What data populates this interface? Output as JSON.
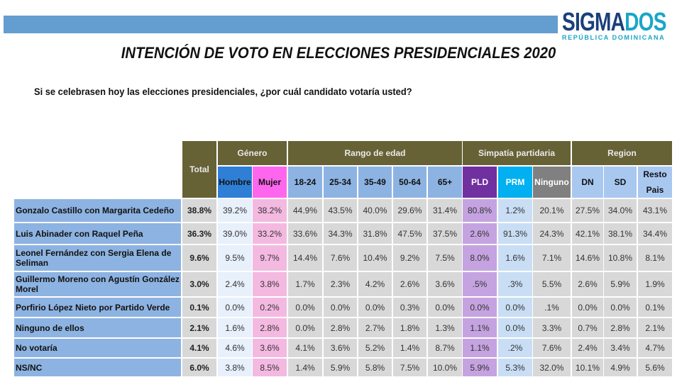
{
  "header": {
    "logo_main_part1": "SIGMA",
    "logo_main_part2": "DOS",
    "logo_sub": "REPÚBLICA DOMINICANA",
    "title": "INTENCIÓN DE VOTO EN ELECCIONES PRESIDENCIALES 2020",
    "question": "Si se celebrasen hoy las elecciones presidenciales, ¿por cuál candidato votaría usted?"
  },
  "colors": {
    "topbar": "#649dd0",
    "header_olive": "#676236",
    "hombre": "#2f7fd6",
    "mujer": "#ff66ee",
    "age": "#8db3e2",
    "pld": "#7030a0",
    "prm": "#00b0f0",
    "ninguno": "#808080",
    "region": "#a9c8f0"
  },
  "table": {
    "total_header": "Total",
    "groups": [
      "Género",
      "Rango de edad",
      "Simpatía partidaria",
      "Region"
    ],
    "columns": [
      "Hombre",
      "Mujer",
      "18-24",
      "25-34",
      "35-49",
      "50-64",
      "65+",
      "PLD",
      "PRM",
      "Ninguno",
      "DN",
      "SD",
      "Resto Pais"
    ],
    "rows": [
      {
        "label": "Gonzalo Castillo con Margarita Cedeño",
        "total": "38.8%",
        "values": [
          "39.2%",
          "38.2%",
          "44.9%",
          "43.5%",
          "40.0%",
          "29.6%",
          "31.4%",
          "80.8%",
          "1.2%",
          "20.1%",
          "27.5%",
          "34.0%",
          "43.1%"
        ]
      },
      {
        "label": "Luis Abinader con Raquel Peña",
        "total": "36.3%",
        "values": [
          "39.0%",
          "33.2%",
          "33.6%",
          "34.3%",
          "31.8%",
          "47.5%",
          "37.5%",
          "2.6%",
          "91.3%",
          "24.3%",
          "42.1%",
          "38.1%",
          "34.4%"
        ]
      },
      {
        "label": "Leonel Fernández con Sergia Elena de Seliman",
        "total": "9.6%",
        "values": [
          "9.5%",
          "9.7%",
          "14.4%",
          "7.6%",
          "10.4%",
          "9.2%",
          "7.5%",
          "8.0%",
          "1.6%",
          "7.1%",
          "14.6%",
          "10.8%",
          "8.1%"
        ]
      },
      {
        "label": "Guillermo Moreno con Agustín González Morel",
        "total": "3.0%",
        "values": [
          "2.4%",
          "3.8%",
          "1.7%",
          "2.3%",
          "4.2%",
          "2.6%",
          "3.6%",
          ".5%",
          ".3%",
          "5.5%",
          "2.6%",
          "5.9%",
          "1.9%"
        ]
      },
      {
        "label": "Porfirio López Nieto por Partido Verde",
        "total": "0.1%",
        "values": [
          "0.0%",
          "0.2%",
          "0.0%",
          "0.0%",
          "0.0%",
          "0.3%",
          "0.0%",
          "0.0%",
          "0.0%",
          ".1%",
          "0.0%",
          "0.0%",
          "0.1%"
        ]
      },
      {
        "label": "Ninguno de ellos",
        "total": "2.1%",
        "values": [
          "1.6%",
          "2.8%",
          "0.0%",
          "2.8%",
          "2.7%",
          "1.8%",
          "1.3%",
          "1.1%",
          "0.0%",
          "3.3%",
          "0.7%",
          "2.8%",
          "2.1%"
        ]
      },
      {
        "label": "No votaría",
        "total": "4.1%",
        "values": [
          "4.6%",
          "3.6%",
          "4.1%",
          "3.6%",
          "5.2%",
          "1.4%",
          "8.7%",
          "1.1%",
          ".2%",
          "7.6%",
          "2.4%",
          "3.4%",
          "4.7%"
        ]
      },
      {
        "label": "NS/NC",
        "total": "6.0%",
        "values": [
          "3.8%",
          "8.5%",
          "1.4%",
          "5.9%",
          "5.8%",
          "7.5%",
          "10.0%",
          "5.9%",
          "5.3%",
          "32.0%",
          "10.1%",
          "4.9%",
          "5.6%"
        ]
      }
    ]
  }
}
